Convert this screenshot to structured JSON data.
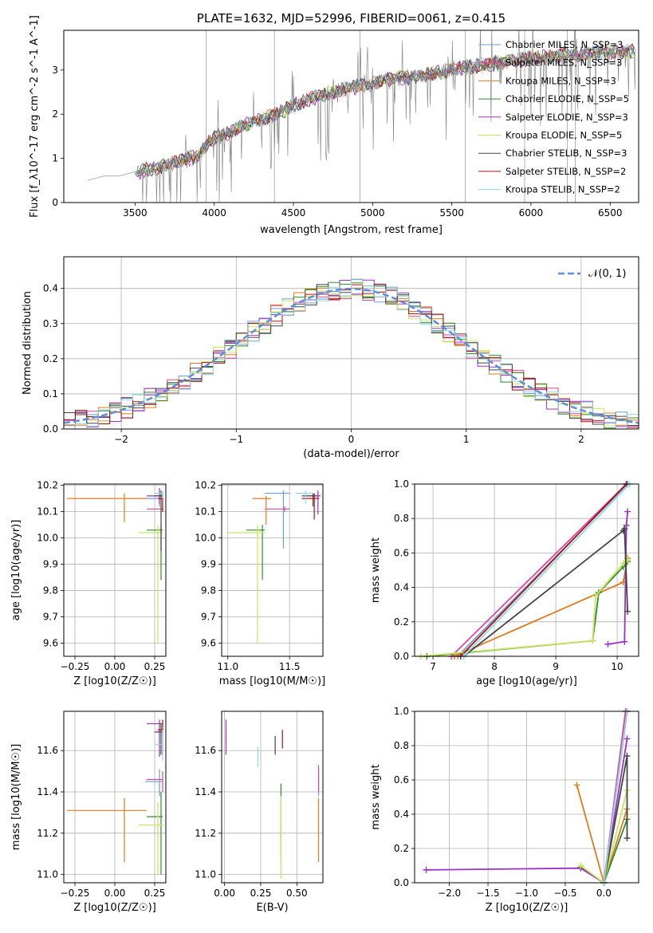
{
  "colors": {
    "chabrier_miles": "#6a9fd8",
    "salpeter_miles": "#e0459f",
    "kroupa_miles": "#e07b1a",
    "chabrier_elodie": "#2e8b2e",
    "salpeter_elodie": "#9b30c9",
    "kroupa_elodie": "#c8e65a",
    "chabrier_stelib": "#444444",
    "salpeter_stelib": "#b01010",
    "kroupa_stelib": "#8ed8e8",
    "normal": "#5b8fd9",
    "data": "#7f7f7f"
  },
  "chart_data": [
    {
      "id": "spectrum",
      "type": "line",
      "title": "PLATE=1632, MJD=52996, FIBERID=0061, z=0.415",
      "xlabel": "wavelength [Angstrom, rest frame]",
      "ylabel": "Flux [f_λ10^-17 erg cm^-2 s^-1 A^-1]",
      "xlim": [
        3050,
        6680
      ],
      "ylim": [
        0,
        3.9
      ],
      "xticks": [
        "3500",
        "4000",
        "4500",
        "5000",
        "5500",
        "6000",
        "6500"
      ],
      "yticks": [
        "0",
        "1",
        "2",
        "3"
      ],
      "legend_position": "upper-right",
      "series": [
        {
          "name": "Chabrier MILES, N_SSP=3",
          "key": "chabrier_miles"
        },
        {
          "name": "Salpeter MILES, N_SSP=3",
          "key": "salpeter_miles"
        },
        {
          "name": "Kroupa MILES, N_SSP=3",
          "key": "kroupa_miles"
        },
        {
          "name": "Chabrier ELODIE, N_SSP=5",
          "key": "chabrier_elodie"
        },
        {
          "name": "Salpeter ELODIE, N_SSP=3",
          "key": "salpeter_elodie"
        },
        {
          "name": "Kroupa ELODIE, N_SSP=5",
          "key": "kroupa_elodie"
        },
        {
          "name": "Chabrier STELIB, N_SSP=3",
          "key": "chabrier_stelib"
        },
        {
          "name": "Salpeter STELIB, N_SSP=2",
          "key": "salpeter_stelib"
        },
        {
          "name": "Kroupa STELIB, N_SSP=2",
          "key": "kroupa_stelib"
        }
      ],
      "continuum": {
        "x": [
          3200,
          3300,
          3400,
          3500,
          3600,
          3700,
          3800,
          3900,
          3950,
          4000,
          4100,
          4200,
          4300,
          4400,
          4500,
          4600,
          4700,
          4800,
          4900,
          5000,
          5100,
          5200,
          5300,
          5400,
          5500,
          5600,
          5700,
          5800,
          5900,
          6000,
          6100,
          6200,
          6300,
          6400,
          6500,
          6600
        ],
        "y": [
          0.5,
          0.6,
          0.6,
          0.7,
          0.75,
          0.85,
          0.95,
          1.05,
          1.3,
          1.45,
          1.6,
          1.75,
          1.9,
          2.0,
          2.2,
          2.35,
          2.45,
          2.55,
          2.62,
          2.7,
          2.78,
          2.83,
          2.87,
          2.93,
          3.0,
          3.07,
          3.12,
          3.18,
          3.22,
          3.27,
          3.3,
          3.33,
          3.35,
          3.38,
          3.4,
          3.42
        ]
      }
    },
    {
      "id": "residuals",
      "type": "histogram",
      "xlabel": "(data-model)/error",
      "ylabel": "Normed distribution",
      "xlim": [
        -2.5,
        2.5
      ],
      "ylim": [
        0,
        0.49
      ],
      "xticks": [
        "−2",
        "−1",
        "0",
        "1",
        "2"
      ],
      "yticks": [
        "0.0",
        "0.1",
        "0.2",
        "0.3",
        "0.4"
      ],
      "legend": "𝒩(0, 1)",
      "legend_position": "upper-right",
      "bin_width": 0.1
    },
    {
      "id": "age_vs_Z",
      "type": "scatter",
      "xlabel": "Z [log10(Z/Z☉)]",
      "ylabel": "age  [log10(age/yr)]",
      "xlim": [
        -0.32,
        0.32
      ],
      "ylim": [
        9.55,
        10.205
      ],
      "xticks": [
        "−0.25",
        "0.00",
        "0.25"
      ],
      "xtick_vals": [
        -0.25,
        0,
        0.25
      ],
      "yticks": [
        "9.6",
        "9.7",
        "9.8",
        "9.9",
        "10.0",
        "10.1",
        "10.2"
      ],
      "ytick_vals": [
        9.6,
        9.7,
        9.8,
        9.9,
        10.0,
        10.1,
        10.2
      ],
      "points": [
        {
          "key": "chabrier_miles",
          "x": 0.28,
          "y": 10.15,
          "ex": [
            0.19,
            0.3
          ],
          "ey": [
            10.12,
            10.16
          ]
        },
        {
          "key": "salpeter_miles",
          "x": 0.3,
          "y": 10.11,
          "ex": [
            0.2,
            0.3
          ],
          "ey": [
            10.1,
            10.12
          ]
        },
        {
          "key": "kroupa_miles",
          "x": 0.06,
          "y": 10.15,
          "ex": [
            -0.3,
            0.2
          ],
          "ey": [
            10.06,
            10.17
          ]
        },
        {
          "key": "chabrier_elodie",
          "x": 0.29,
          "y": 10.03,
          "ex": [
            0.2,
            0.3
          ],
          "ey": [
            9.84,
            10.05
          ]
        },
        {
          "key": "salpeter_elodie",
          "x": 0.28,
          "y": 10.16,
          "ex": [
            0.2,
            0.3
          ],
          "ey": [
            10.13,
            10.19
          ]
        },
        {
          "key": "kroupa_elodie",
          "x": 0.27,
          "y": 10.02,
          "ex": [
            0.15,
            0.3
          ],
          "ey": [
            9.6,
            10.05
          ]
        },
        {
          "key": "chabrier_stelib",
          "x": 0.29,
          "y": 10.16,
          "ex": [
            0.25,
            0.3
          ],
          "ey": [
            9.95,
            10.18
          ]
        },
        {
          "key": "salpeter_stelib",
          "x": 0.3,
          "y": 10.15,
          "ex": [
            0.27,
            0.3
          ],
          "ey": [
            10.1,
            10.17
          ]
        },
        {
          "key": "kroupa_stelib",
          "x": 0.3,
          "y": 10.17,
          "ex": [
            0.25,
            0.3
          ],
          "ey": [
            10.15,
            10.18
          ]
        }
      ]
    },
    {
      "id": "age_vs_mass",
      "type": "scatter",
      "xlabel": "mass [log10(M/M☉)]",
      "ylabel": "",
      "xlim": [
        10.95,
        11.77
      ],
      "ylim": [
        9.55,
        10.205
      ],
      "xticks": [
        "11.0",
        "11.5"
      ],
      "xtick_vals": [
        11.0,
        11.5
      ],
      "yticks": [
        "9.6",
        "9.7",
        "9.8",
        "9.9",
        "10.0",
        "10.1",
        "10.2"
      ],
      "ytick_vals": [
        9.6,
        9.7,
        9.8,
        9.9,
        10.0,
        10.1,
        10.2
      ],
      "points": [
        {
          "key": "chabrier_miles",
          "x": 11.45,
          "y": 10.17,
          "ex": [
            11.3,
            11.5
          ],
          "ey": [
            9.96,
            10.18
          ]
        },
        {
          "key": "salpeter_miles",
          "x": 11.46,
          "y": 10.11,
          "ex": [
            11.3,
            11.5
          ],
          "ey": [
            10.1,
            10.12
          ]
        },
        {
          "key": "kroupa_miles",
          "x": 11.31,
          "y": 10.15,
          "ex": [
            11.2,
            11.35
          ],
          "ey": [
            10.05,
            10.16
          ]
        },
        {
          "key": "chabrier_elodie",
          "x": 11.28,
          "y": 10.03,
          "ex": [
            11.15,
            11.3
          ],
          "ey": [
            9.84,
            10.05
          ]
        },
        {
          "key": "salpeter_elodie",
          "x": 11.73,
          "y": 10.16,
          "ex": [
            11.62,
            11.75
          ],
          "ey": [
            10.09,
            10.18
          ]
        },
        {
          "key": "kroupa_elodie",
          "x": 11.24,
          "y": 10.02,
          "ex": [
            11.0,
            11.3
          ],
          "ey": [
            9.6,
            10.05
          ]
        },
        {
          "key": "chabrier_stelib",
          "x": 11.69,
          "y": 10.16,
          "ex": [
            11.6,
            11.72
          ],
          "ey": [
            10.12,
            10.17
          ]
        },
        {
          "key": "salpeter_stelib",
          "x": 11.7,
          "y": 10.15,
          "ex": [
            11.6,
            11.74
          ],
          "ey": [
            10.07,
            10.17
          ]
        },
        {
          "key": "kroupa_stelib",
          "x": 11.63,
          "y": 10.17,
          "ex": [
            11.55,
            11.7
          ],
          "ey": [
            10.13,
            10.18
          ]
        }
      ]
    },
    {
      "id": "mass_weight_vs_age",
      "type": "line",
      "xlabel": "age  [log10(age/yr)]",
      "ylabel": "mass weight",
      "xlim": [
        6.7,
        10.35
      ],
      "ylim": [
        0,
        1.0
      ],
      "xticks": [
        "7",
        "8",
        "9",
        "10"
      ],
      "xtick_vals": [
        7,
        8,
        9,
        10
      ],
      "yticks": [
        "0.0",
        "0.2",
        "0.4",
        "0.6",
        "0.8",
        "1.0"
      ],
      "ytick_vals": [
        0,
        0.2,
        0.4,
        0.6,
        0.8,
        1.0
      ],
      "series": [
        {
          "key": "chabrier_miles",
          "x": [
            7.4,
            10.17
          ],
          "y": [
            0.0,
            1.0
          ]
        },
        {
          "key": "salpeter_miles",
          "x": [
            7.3,
            10.15
          ],
          "y": [
            0.0,
            1.0
          ]
        },
        {
          "key": "kroupa_miles",
          "x": [
            7.35,
            10.1,
            10.17
          ],
          "y": [
            0.0,
            0.43,
            0.57
          ]
        },
        {
          "key": "chabrier_elodie",
          "x": [
            6.9,
            9.6,
            9.7,
            10.1,
            10.17
          ],
          "y": [
            0.0,
            0.09,
            0.37,
            0.52,
            0.55
          ]
        },
        {
          "key": "salpeter_elodie",
          "x": [
            9.85,
            10.12,
            10.15,
            10.17
          ],
          "y": [
            0.07,
            0.085,
            0.76,
            0.84
          ]
        },
        {
          "key": "kroupa_elodie",
          "x": [
            6.8,
            9.6,
            9.65,
            10.1,
            10.17
          ],
          "y": [
            0.0,
            0.09,
            0.35,
            0.54,
            0.56
          ]
        },
        {
          "key": "chabrier_stelib",
          "x": [
            7.5,
            10.1,
            10.12,
            10.17
          ],
          "y": [
            0.0,
            0.73,
            0.74,
            0.26
          ]
        },
        {
          "key": "salpeter_stelib",
          "x": [
            7.45,
            10.15
          ],
          "y": [
            0.0,
            1.0
          ]
        },
        {
          "key": "kroupa_stelib",
          "x": [
            7.5,
            10.2
          ],
          "y": [
            0.0,
            1.0
          ]
        }
      ]
    },
    {
      "id": "mass_vs_Z",
      "type": "scatter",
      "xlabel": "Z [log10(Z/Z☉)]",
      "ylabel": "mass [log10(M/M☉)]",
      "xlim": [
        -0.32,
        0.32
      ],
      "ylim": [
        10.96,
        11.79
      ],
      "xticks": [
        "−0.25",
        "0.00",
        "0.25"
      ],
      "xtick_vals": [
        -0.25,
        0,
        0.25
      ],
      "yticks": [
        "11.0",
        "11.2",
        "11.4",
        "11.6"
      ],
      "ytick_vals": [
        11.0,
        11.2,
        11.4,
        11.6
      ],
      "points": [
        {
          "key": "chabrier_miles",
          "x": 0.28,
          "y": 11.45,
          "ex": [
            0.19,
            0.3
          ],
          "ey": [
            11.38,
            11.51
          ]
        },
        {
          "key": "salpeter_miles",
          "x": 0.3,
          "y": 11.46,
          "ex": [
            0.2,
            0.3
          ],
          "ey": [
            11.4,
            11.5
          ]
        },
        {
          "key": "kroupa_miles",
          "x": 0.06,
          "y": 11.31,
          "ex": [
            -0.3,
            0.2
          ],
          "ey": [
            11.06,
            11.37
          ]
        },
        {
          "key": "chabrier_elodie",
          "x": 0.29,
          "y": 11.28,
          "ex": [
            0.2,
            0.3
          ],
          "ey": [
            11.0,
            11.4
          ]
        },
        {
          "key": "salpeter_elodie",
          "x": 0.28,
          "y": 11.73,
          "ex": [
            0.2,
            0.3
          ],
          "ey": [
            11.57,
            11.75
          ]
        },
        {
          "key": "kroupa_elodie",
          "x": 0.27,
          "y": 11.24,
          "ex": [
            0.15,
            0.3
          ],
          "ey": [
            11.0,
            11.35
          ]
        },
        {
          "key": "chabrier_stelib",
          "x": 0.29,
          "y": 11.69,
          "ex": [
            0.25,
            0.3
          ],
          "ey": [
            11.58,
            11.73
          ]
        },
        {
          "key": "salpeter_stelib",
          "x": 0.3,
          "y": 11.7,
          "ex": [
            0.27,
            0.3
          ],
          "ey": [
            11.58,
            11.75
          ]
        },
        {
          "key": "kroupa_stelib",
          "x": 0.3,
          "y": 11.63,
          "ex": [
            0.25,
            0.3
          ],
          "ey": [
            11.55,
            11.7
          ]
        }
      ]
    },
    {
      "id": "mass_vs_ebv",
      "type": "scatter",
      "xlabel": "E(B-V)",
      "ylabel": "",
      "xlim": [
        -0.02,
        0.68
      ],
      "ylim": [
        10.96,
        11.79
      ],
      "xticks": [
        "0.00",
        "0.25",
        "0.50"
      ],
      "xtick_vals": [
        0,
        0.25,
        0.5
      ],
      "yticks": [
        "11.0",
        "11.2",
        "11.4",
        "11.6"
      ],
      "ytick_vals": [
        11.0,
        11.2,
        11.4,
        11.6
      ],
      "points": [
        {
          "key": "chabrier_miles",
          "x": 0.65,
          "y": 11.45,
          "ex": [
            0.65,
            0.65
          ],
          "ey": [
            11.38,
            11.51
          ]
        },
        {
          "key": "salpeter_miles",
          "x": 0.65,
          "y": 11.46,
          "ex": [
            0.65,
            0.65
          ],
          "ey": [
            11.4,
            11.53
          ]
        },
        {
          "key": "kroupa_miles",
          "x": 0.65,
          "y": 11.31,
          "ex": [
            0.65,
            0.65
          ],
          "ey": [
            11.06,
            11.37
          ]
        },
        {
          "key": "chabrier_elodie",
          "x": 0.39,
          "y": 11.28,
          "ex": [
            0.39,
            0.39
          ],
          "ey": [
            11.08,
            11.44
          ]
        },
        {
          "key": "salpeter_elodie",
          "x": 0.01,
          "y": 11.66,
          "ex": [
            0.01,
            0.01
          ],
          "ey": [
            11.58,
            11.75
          ]
        },
        {
          "key": "kroupa_elodie",
          "x": 0.39,
          "y": 11.24,
          "ex": [
            0.39,
            0.39
          ],
          "ey": [
            10.98,
            11.38
          ]
        },
        {
          "key": "chabrier_stelib",
          "x": 0.35,
          "y": 11.62,
          "ex": [
            0.35,
            0.35
          ],
          "ey": [
            11.58,
            11.67
          ]
        },
        {
          "key": "salpeter_stelib",
          "x": 0.4,
          "y": 11.67,
          "ex": [
            0.4,
            0.4
          ],
          "ey": [
            11.61,
            11.7
          ]
        },
        {
          "key": "kroupa_stelib",
          "x": 0.23,
          "y": 11.57,
          "ex": [
            0.23,
            0.23
          ],
          "ey": [
            11.52,
            11.62
          ]
        }
      ]
    },
    {
      "id": "mass_weight_vs_Z",
      "type": "line",
      "xlabel": "Z [log10(Z/Z☉)]",
      "ylabel": "mass weight",
      "xlim": [
        -2.45,
        0.45
      ],
      "ylim": [
        0,
        1.0
      ],
      "xticks": [
        "−2.0",
        "−1.5",
        "−1.0",
        "−0.5",
        "0.0"
      ],
      "xtick_vals": [
        -2,
        -1.5,
        -1,
        -0.5,
        0
      ],
      "yticks": [
        "0.0",
        "0.2",
        "0.4",
        "0.6",
        "0.8",
        "1.0"
      ],
      "ytick_vals": [
        0,
        0.2,
        0.4,
        0.6,
        0.8,
        1.0
      ],
      "series": [
        {
          "key": "chabrier_miles",
          "x": [
            0.0,
            0.3
          ],
          "y": [
            0.0,
            1.0
          ]
        },
        {
          "key": "salpeter_miles",
          "x": [
            0.0,
            0.28
          ],
          "y": [
            0.0,
            1.0
          ]
        },
        {
          "key": "kroupa_miles",
          "x": [
            -0.35,
            0.0,
            0.3
          ],
          "y": [
            0.57,
            0.0,
            0.43
          ]
        },
        {
          "key": "chabrier_elodie",
          "x": [
            -0.3,
            0.0,
            0.3
          ],
          "y": [
            0.09,
            0.0,
            0.37
          ]
        },
        {
          "key": "salpeter_elodie",
          "x": [
            -2.3,
            -0.3,
            0.0,
            0.3
          ],
          "y": [
            0.075,
            0.085,
            0.0,
            0.84
          ]
        },
        {
          "key": "kroupa_elodie",
          "x": [
            -0.3,
            0.0,
            0.3
          ],
          "y": [
            0.1,
            0.0,
            0.54
          ]
        },
        {
          "key": "chabrier_stelib",
          "x": [
            0.0,
            0.3,
            0.3
          ],
          "y": [
            0.0,
            0.74,
            0.26
          ]
        },
        {
          "key": "salpeter_stelib",
          "x": [
            0.0,
            0.3
          ],
          "y": [
            0.0,
            1.0
          ]
        },
        {
          "key": "kroupa_stelib",
          "x": [
            0.0,
            0.3
          ],
          "y": [
            0.0,
            1.0
          ]
        }
      ]
    }
  ]
}
